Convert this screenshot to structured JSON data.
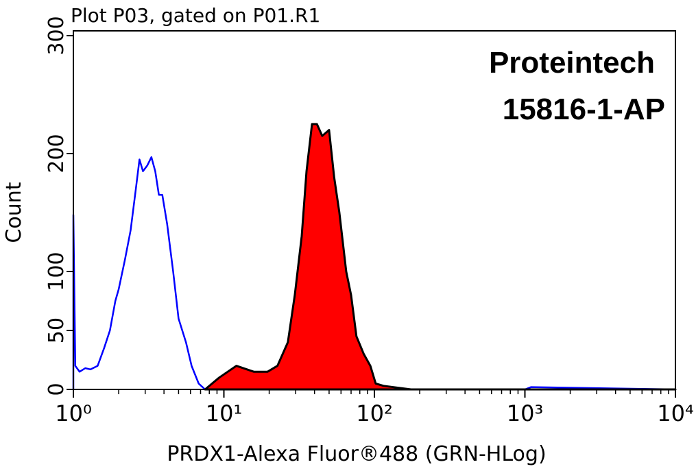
{
  "chart_data": {
    "type": "line",
    "title": "Plot P03, gated on P01.R1",
    "x_label": "PRDX1-Alexa Fluor®488 (GRN-HLog)",
    "y_label": "Count",
    "annotations": [
      "Proteintech",
      "15816-1-AP"
    ],
    "xscale": "log",
    "xlim": [
      1,
      10000
    ],
    "xticks": [
      {
        "value": 1,
        "label": "10⁰"
      },
      {
        "value": 10,
        "label": "10¹"
      },
      {
        "value": 100,
        "label": "10²"
      },
      {
        "value": 1000,
        "label": "10³"
      },
      {
        "value": 10000,
        "label": "10⁴"
      }
    ],
    "minor_xticks": [
      2,
      3,
      4,
      5,
      6,
      7,
      8,
      9,
      20,
      30,
      40,
      50,
      60,
      70,
      80,
      90,
      200,
      300,
      400,
      500,
      600,
      700,
      800,
      900,
      2000,
      3000,
      4000,
      5000,
      6000,
      7000,
      8000,
      9000
    ],
    "ylim": [
      0,
      300
    ],
    "yticks": [
      0,
      50,
      100,
      200,
      300
    ],
    "series": [
      {
        "color": "#0000ff",
        "fill": false,
        "x": [
          1,
          1,
          1.03,
          1.1,
          1.2,
          1.3,
          1.45,
          1.6,
          1.75,
          1.9,
          2.0,
          2.2,
          2.4,
          2.6,
          2.75,
          2.9,
          3.1,
          3.3,
          3.5,
          3.7,
          3.9,
          4.2,
          4.6,
          5.0,
          5.6,
          6.1,
          6.8,
          7.5,
          100,
          1000,
          1100,
          10000
        ],
        "values": [
          0,
          148,
          20,
          15,
          18,
          17,
          20,
          35,
          50,
          75,
          85,
          110,
          135,
          170,
          195,
          185,
          190,
          197,
          185,
          165,
          165,
          140,
          100,
          60,
          40,
          20,
          5,
          0,
          0,
          0,
          2,
          0
        ]
      },
      {
        "color": "#ff0000",
        "outline": "#000000",
        "fill": true,
        "x": [
          7.5,
          9.3,
          12.1,
          15.8,
          19.5,
          22.7,
          26.6,
          29.6,
          32.9,
          35.4,
          38.5,
          41.5,
          45,
          50,
          54,
          58.5,
          65,
          70,
          76,
          85,
          94,
          102,
          115,
          175,
          10000
        ],
        "values": [
          0,
          10,
          20,
          15,
          15,
          20,
          40,
          80,
          130,
          185,
          225,
          225,
          215,
          220,
          180,
          150,
          100,
          80,
          45,
          30,
          20,
          5,
          3,
          0,
          0
        ]
      }
    ]
  }
}
